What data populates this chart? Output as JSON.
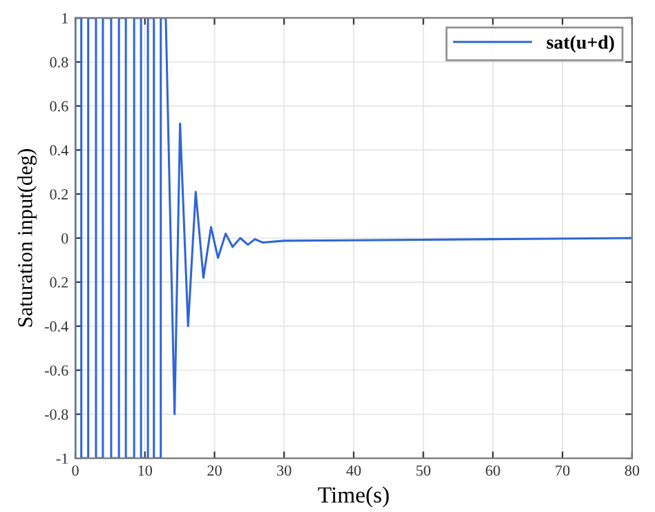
{
  "chart_data": {
    "type": "line",
    "xlabel": "Time(s)",
    "ylabel": "Saturation input(deg)",
    "series": [
      {
        "name": "sat(u+d)",
        "color": "#2f66d8",
        "x": [
          0,
          0,
          0.86,
          0.86,
          1.85,
          1.85,
          2.97,
          2.97,
          3.96,
          3.96,
          5.15,
          5.15,
          6.27,
          6.27,
          7.26,
          7.26,
          8.45,
          8.45,
          9.44,
          9.44,
          10.43,
          10.43,
          11.29,
          11.29,
          12.28,
          12.28,
          13.0,
          14.26,
          15.05,
          16.2,
          17.3,
          18.4,
          19.5,
          20.5,
          21.6,
          22.6,
          23.7,
          24.8,
          25.8,
          26.9,
          30,
          40,
          60,
          80
        ],
        "values": [
          -1,
          1,
          1,
          -1,
          -1,
          1,
          1,
          -1,
          -1,
          1,
          1,
          -1,
          -1,
          1,
          1,
          -1,
          -1,
          1,
          1,
          -1,
          -1,
          1,
          1,
          -1,
          -1,
          1,
          1,
          -0.8,
          0.52,
          -0.4,
          0.21,
          -0.18,
          0.05,
          -0.09,
          0.02,
          -0.04,
          0.0,
          -0.03,
          -0.005,
          -0.02,
          -0.012,
          -0.01,
          -0.005,
          0
        ]
      }
    ],
    "xlim": [
      0,
      80
    ],
    "xticks": [
      0,
      10,
      20,
      30,
      40,
      50,
      60,
      70,
      80
    ],
    "ylim": [
      -1,
      1
    ],
    "yticks": [
      -1,
      -0.8,
      -0.6,
      -0.4,
      {
        "value": -0.2,
        "label": "0.2"
      },
      0,
      0.2,
      0.4,
      0.6,
      0.8,
      1
    ],
    "grid": true,
    "legend": "top right",
    "line_style": "solid",
    "marker": "none"
  }
}
